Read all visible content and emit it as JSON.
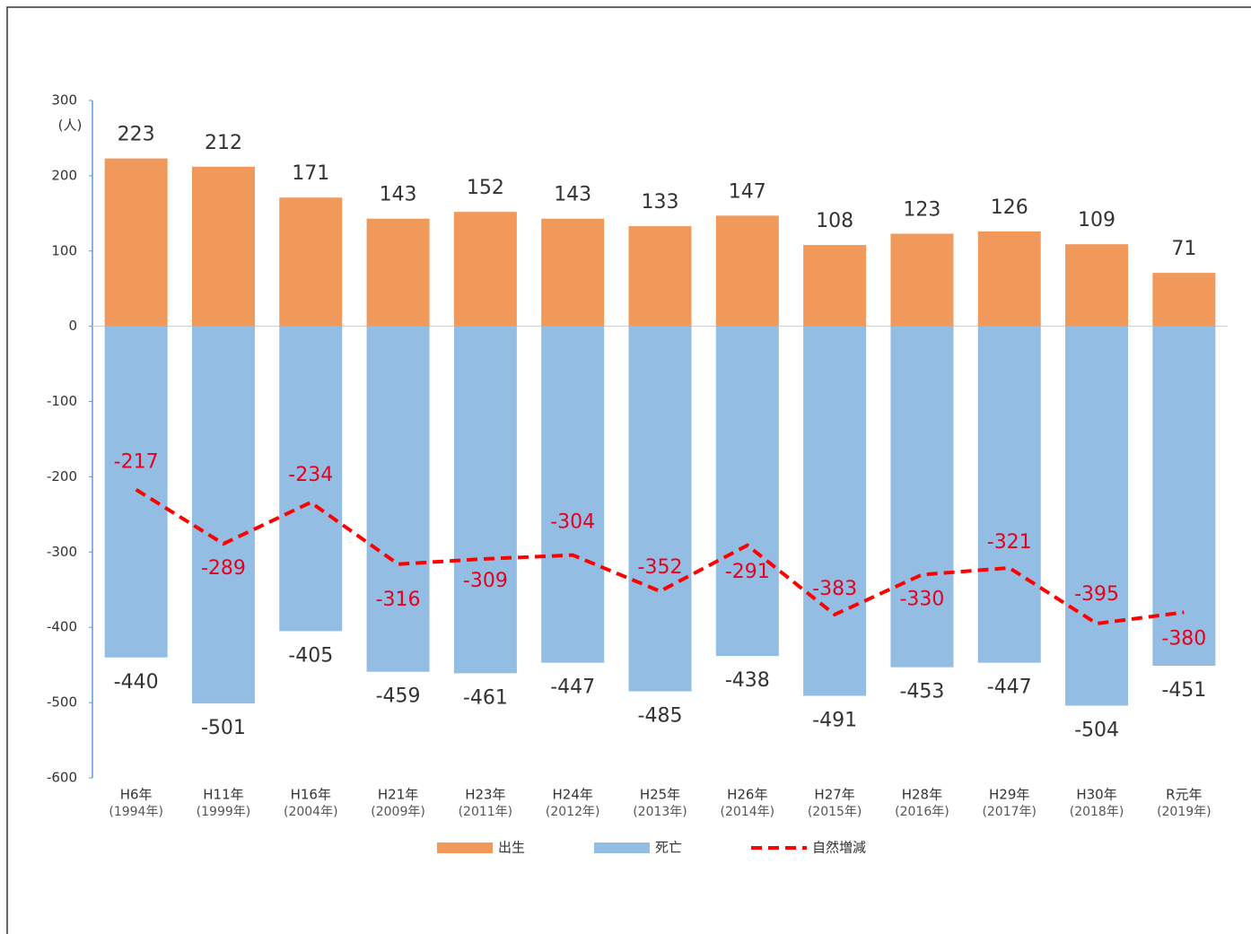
{
  "chart_data": {
    "type": "bar",
    "y_unit": "(人)",
    "categories": [
      "H6年",
      "H11年",
      "H16年",
      "H21年",
      "H23年",
      "H24年",
      "H25年",
      "H26年",
      "H27年",
      "H28年",
      "H29年",
      "H30年",
      "R元年"
    ],
    "category_sublabels": [
      "(1994年)",
      "(1999年)",
      "(2004年)",
      "(2009年)",
      "(2011年)",
      "(2012年)",
      "(2013年)",
      "(2014年)",
      "(2015年)",
      "(2016年)",
      "(2017年)",
      "(2018年)",
      "(2019年)"
    ],
    "series": [
      {
        "name": "出生",
        "color": "#f0995a",
        "type": "bar",
        "values": [
          223,
          212,
          171,
          143,
          152,
          143,
          133,
          147,
          108,
          123,
          126,
          109,
          71
        ]
      },
      {
        "name": "死亡",
        "color": "#94bde3",
        "type": "bar",
        "values": [
          -440,
          -501,
          -405,
          -459,
          -461,
          -447,
          -485,
          -438,
          -491,
          -453,
          -447,
          -504,
          -451
        ]
      },
      {
        "name": "自然増減",
        "color": "#ff0000",
        "type": "line",
        "dashed": true,
        "values": [
          -217,
          -289,
          -234,
          -316,
          -309,
          -304,
          -352,
          -291,
          -383,
          -330,
          -321,
          -395,
          -380
        ]
      }
    ],
    "ylim": [
      -600,
      300
    ],
    "yticks": [
      300,
      200,
      100,
      0,
      -100,
      -200,
      -300,
      -400,
      -500,
      -600
    ],
    "negative_tick_color": "#e8001c"
  }
}
